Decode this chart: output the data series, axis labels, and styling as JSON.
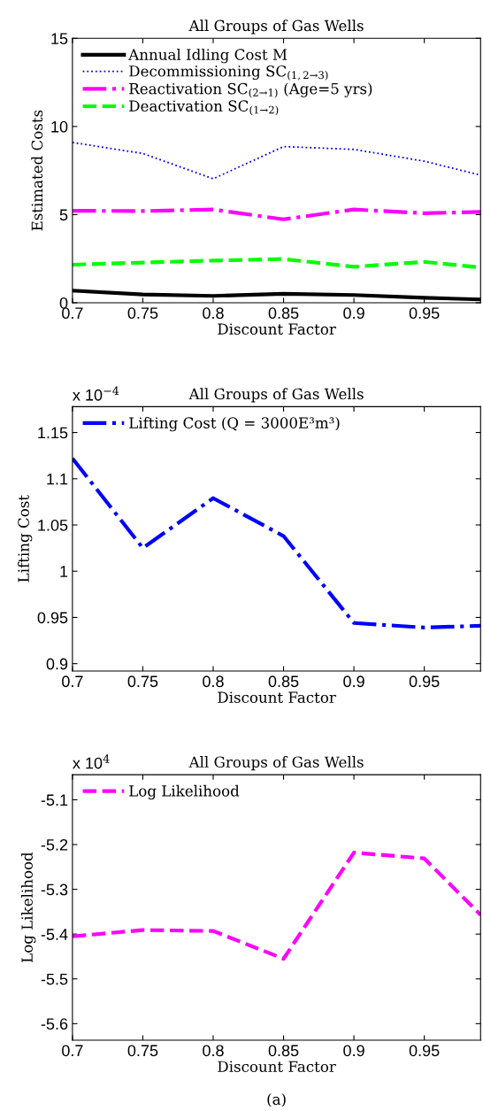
{
  "chart_data": [
    {
      "type": "line",
      "title": "All Groups of Gas Wells",
      "xlabel": "Discount Factor",
      "ylabel": "Estimated Costs",
      "x": [
        0.7,
        0.75,
        0.8,
        0.85,
        0.9,
        0.95,
        0.99
      ],
      "xlim": [
        0.7,
        0.99
      ],
      "xticks": [
        0.7,
        0.75,
        0.8,
        0.85,
        0.9,
        0.95
      ],
      "ylim": [
        0,
        15
      ],
      "yticks": [
        0,
        5,
        10,
        15
      ],
      "grid": false,
      "legend": "top left",
      "marker": "none",
      "series": [
        {
          "name": "Annual Idling Cost M",
          "color": "#000000",
          "line_style": "solid",
          "values": [
            0.69,
            0.47,
            0.39,
            0.51,
            0.44,
            0.28,
            0.19
          ]
        },
        {
          "name": "Decommissioning SC$_{(1,2→3)}$",
          "color": "#0000ff",
          "line_style": "dotted",
          "values": [
            9.09,
            8.47,
            7.03,
            8.86,
            8.7,
            8.03,
            7.24
          ]
        },
        {
          "name": "Reactivation SC$_{(2→1)}$ (Age=5 yrs)",
          "color": "#ff00ff",
          "line_style": "dashdot",
          "values": [
            5.22,
            5.2,
            5.29,
            4.73,
            5.29,
            5.08,
            5.15
          ]
        },
        {
          "name": "Deactivation SC$_{(1→2)}$",
          "color": "#00ff00",
          "line_style": "dashed",
          "values": [
            2.16,
            2.28,
            2.39,
            2.48,
            2.04,
            2.32,
            2.0
          ]
        }
      ]
    },
    {
      "type": "line",
      "title": "All Groups of Gas Wells",
      "xlabel": "Discount Factor",
      "ylabel": "Lifting Cost",
      "annotations": [
        "x 10$^{−4}$"
      ],
      "x": [
        0.7,
        0.75,
        0.8,
        0.85,
        0.9,
        0.95,
        0.99
      ],
      "xlim": [
        0.7,
        0.99
      ],
      "xticks": [
        0.7,
        0.75,
        0.8,
        0.85,
        0.9,
        0.95
      ],
      "ylim": [
        0.892,
        1.178
      ],
      "yticks": [
        0.9,
        0.95,
        1,
        1.05,
        1.1,
        1.15
      ],
      "grid": false,
      "legend": "top left",
      "marker": "none",
      "series": [
        {
          "name": "Lifting Cost (Q = 3000E³m³)",
          "color": "#0000ff",
          "line_style": "dashdot",
          "values": [
            1.122,
            1.025,
            1.079,
            1.038,
            0.944,
            0.939,
            0.941
          ]
        }
      ]
    },
    {
      "type": "line",
      "title": "All Groups of Gas Wells",
      "xlabel": "Discount Factor",
      "ylabel": "Log Likelihood",
      "annotations": [
        "x 10$^{4}$",
        "(a)"
      ],
      "x": [
        0.7,
        0.75,
        0.8,
        0.85,
        0.9,
        0.95,
        0.99
      ],
      "xlim": [
        0.7,
        0.99
      ],
      "xticks": [
        0.7,
        0.75,
        0.8,
        0.85,
        0.9,
        0.95
      ],
      "ylim": [
        -5.637,
        -5.044
      ],
      "yticks": [
        -5.6,
        -5.5,
        -5.4,
        -5.3,
        -5.2,
        -5.1
      ],
      "grid": false,
      "legend": "top left",
      "marker": "none",
      "series": [
        {
          "name": "Log Likelihood",
          "color": "#ff00ff",
          "line_style": "dashed",
          "values": [
            -5.405,
            -5.391,
            -5.393,
            -5.455,
            -5.218,
            -5.231,
            -5.357
          ]
        }
      ]
    }
  ]
}
